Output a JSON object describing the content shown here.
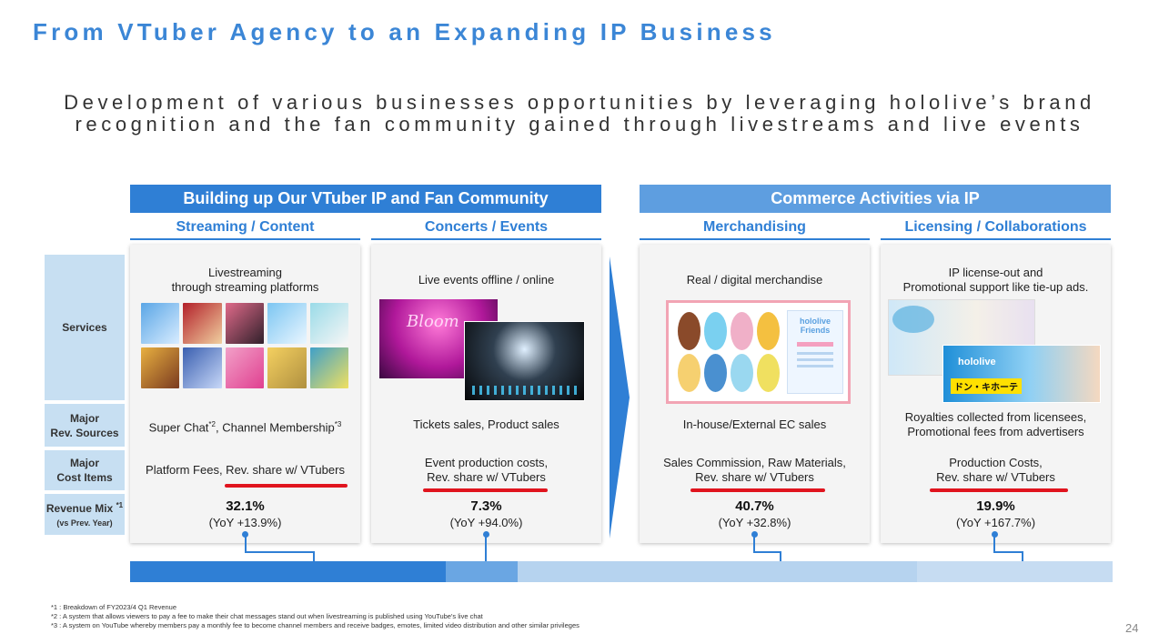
{
  "title": "From VTuber Agency to an Expanding IP Business",
  "subtitle_line1": "Development of various businesses opportunities by leveraging hololive’s brand",
  "subtitle_line2": "recognition and the fan community gained through livestreams and live events",
  "sections": [
    {
      "label": "Building up Our VTuber IP and Fan Community"
    },
    {
      "label": "Commerce Activities via IP"
    }
  ],
  "row_labels": {
    "services": "Services",
    "major_rev_line1": "Major",
    "major_rev_line2": "Rev. Sources",
    "major_cost_line1": "Major",
    "major_cost_line2": "Cost Items",
    "revenue_mix_line1": "Revenue Mix",
    "revenue_mix_sup": "*1",
    "revenue_mix_line2": "(vs Prev. Year)"
  },
  "columns": [
    {
      "header": "Streaming / Content",
      "service_line1": "Livestreaming",
      "service_line2": "through streaming platforms",
      "rev_a": "Super Chat",
      "rev_a_sup": "*2",
      "rev_b": ", Channel Membership",
      "rev_b_sup": "*3",
      "cost_line1": "Platform Fees, Rev. share w/ VTubers",
      "cost_line2": "",
      "pct": "32.1%",
      "yoy": "(YoY +13.9%)"
    },
    {
      "header": "Concerts / Events",
      "service_line1": "Live events offline / online",
      "service_line2": "",
      "rev_line1": "Tickets sales, Product sales",
      "rev_line2": "",
      "cost_line1": "Event production costs,",
      "cost_line2": "Rev. share w/ VTubers",
      "pct": "7.3%",
      "yoy": "(YoY +94.0%)",
      "image_text": "Bloom"
    },
    {
      "header": "Merchandising",
      "service_line1": "Real / digital merchandise",
      "service_line2": "",
      "rev_line1": "In-house/External EC sales",
      "rev_line2": "",
      "cost_line1": "Sales Commission, Raw Materials,",
      "cost_line2": "Rev. share w/ VTubers",
      "pct": "40.7%",
      "yoy": "(YoY +32.8%)",
      "image_text": "hololive Friends"
    },
    {
      "header": "Licensing / Collaborations",
      "service_line1": "IP license-out and",
      "service_line2": "Promotional support like tie-up ads.",
      "rev_line1": "Royalties collected from licensees,",
      "rev_line2": "Promotional fees from advertisers",
      "cost_line1": "Production Costs,",
      "cost_line2": "Rev. share w/ VTubers",
      "pct": "19.9%",
      "yoy": "(YoY +167.7%)",
      "image_text_a": "hololive",
      "image_text_b": "ドン・キホーテ"
    }
  ],
  "revenue_bar": [
    {
      "share": 32.1,
      "color": "#2f7fd5"
    },
    {
      "share": 7.3,
      "color": "#6aa6e3"
    },
    {
      "share": 40.7,
      "color": "#b6d3ef"
    },
    {
      "share": 19.9,
      "color": "#c6dcf2"
    }
  ],
  "footnotes": [
    "*1 : Breakdown of FY2023/4 Q1 Revenue",
    "*2 : A system that allows viewers to pay a fee to make their chat messages stand out when livestreaming is published using YouTube's live chat",
    "*3 : A system on YouTube whereby members pay a monthly fee to become channel members and receive badges, emotes, limited video distribution and other similar privileges"
  ],
  "page_number": "24",
  "colors": {
    "accent": "#2f7fd5",
    "accent_light": "#5e9ee0",
    "underline": "#e0141e",
    "row_label_bg": "#c7dff2"
  }
}
